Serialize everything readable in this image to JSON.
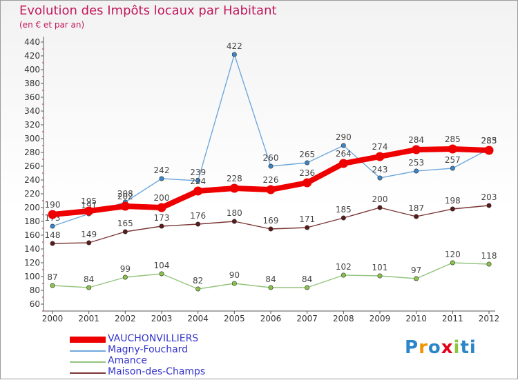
{
  "header": {
    "title": "Evolution des Impôts locaux par Habitant",
    "subtitle": "(en € et par an)"
  },
  "logo": {
    "text": "Proxiti"
  },
  "chart_data": {
    "type": "line",
    "title": "Evolution des Impôts locaux par Habitant",
    "subtitle": "(en € et par an)",
    "xlabel": "",
    "ylabel": "",
    "ylim": [
      60,
      440
    ],
    "ytick_step": 20,
    "grid": "none",
    "legend_position": "bottom-left",
    "x": [
      "2000",
      "2001",
      "2002",
      "2003",
      "2004",
      "2005",
      "2006",
      "2007",
      "2008",
      "2009",
      "2010",
      "2011",
      "2012"
    ],
    "series": [
      {
        "name": "Magny-Fouchard",
        "color": "#6fa8dc",
        "marker": "#3d85c6",
        "values": [
          173,
          191,
          208,
          242,
          239,
          422,
          260,
          265,
          290,
          243,
          253,
          257,
          285
        ],
        "labels": [
          "173",
          "191",
          "208",
          "242",
          "239",
          "422",
          "260",
          "265",
          "290",
          "243",
          "253",
          "257",
          "285"
        ]
      },
      {
        "name": "Amance",
        "color": "#93c47d",
        "marker": "#8bc34a",
        "values": [
          87,
          84,
          99,
          104,
          82,
          90,
          84,
          84,
          102,
          101,
          97,
          120,
          118
        ],
        "labels": [
          "87",
          "84",
          "99",
          "104",
          "82",
          "90",
          "84",
          "84",
          "102",
          "101",
          "97",
          "120",
          "118"
        ]
      },
      {
        "name": "Maison-des-Champs",
        "color": "#7b3535",
        "marker": "#5b1a1a",
        "values": [
          148,
          149,
          165,
          173,
          176,
          180,
          169,
          171,
          185,
          200,
          187,
          198,
          203
        ],
        "labels": [
          "148",
          "149",
          "165",
          "173",
          "176",
          "180",
          "169",
          "171",
          "185",
          "200",
          "187",
          "198",
          "203"
        ]
      },
      {
        "name": "VAUCHONVILLIERS",
        "color": "#ee0000",
        "marker": "#ee0000",
        "values": [
          190,
          195,
          202,
          200,
          224,
          228,
          226,
          236,
          264,
          274,
          284,
          285,
          283
        ],
        "labels": [
          "190",
          "195",
          "202",
          "200",
          "224",
          "228",
          "226",
          "236",
          "264",
          "274",
          "284",
          "285",
          "283"
        ]
      }
    ],
    "legend": [
      {
        "name": "VAUCHONVILLIERS",
        "color": "#ee0000",
        "text_color": "#3333cc"
      },
      {
        "name": "Magny-Fouchard",
        "color": "#6fa8dc",
        "text_color": "#3333cc"
      },
      {
        "name": "Amance",
        "color": "#93c47d",
        "text_color": "#3333cc"
      },
      {
        "name": "Maison-des-Champs",
        "color": "#7b3535",
        "text_color": "#3333cc"
      }
    ]
  }
}
